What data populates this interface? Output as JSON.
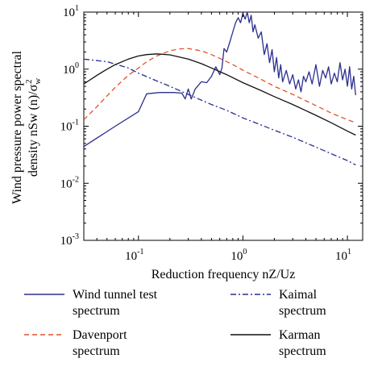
{
  "chart_data": {
    "type": "line",
    "xscale": "log",
    "yscale": "log",
    "xlim": [
      0.03,
      14
    ],
    "ylim": [
      0.001,
      10
    ],
    "xticks": [
      {
        "value": 0.1,
        "base": "10",
        "exp": "-1"
      },
      {
        "value": 1,
        "base": "10",
        "exp": "0"
      },
      {
        "value": 10,
        "base": "10",
        "exp": "1"
      }
    ],
    "yticks": [
      {
        "value": 0.001,
        "base": "10",
        "exp": "-3"
      },
      {
        "value": 0.01,
        "base": "10",
        "exp": "-2"
      },
      {
        "value": 0.1,
        "base": "10",
        "exp": "-1"
      },
      {
        "value": 1,
        "base": "10",
        "exp": "0"
      },
      {
        "value": 10,
        "base": "10",
        "exp": "1"
      }
    ],
    "xlabel": "Reduction frequency nZ/Uz",
    "ylabel_line1": "Wind pressure power spectral",
    "ylabel_line2": "density nSw (n)/σ",
    "ylabel_sub": "w",
    "ylabel_sup": "2",
    "grid": false,
    "legend_position": "bottom",
    "series": [
      {
        "name_line1": "Wind tunnel test",
        "name_line2": "spectrum",
        "color": "#2b2f8f",
        "style": "solid",
        "legend_col": 0,
        "legend_row": 0,
        "x": [
          0.03,
          0.06,
          0.1,
          0.12,
          0.16,
          0.22,
          0.26,
          0.28,
          0.3,
          0.32,
          0.35,
          0.4,
          0.45,
          0.5,
          0.55,
          0.6,
          0.63,
          0.66,
          0.7,
          0.75,
          0.8,
          0.85,
          0.9,
          0.95,
          1.0,
          1.05,
          1.1,
          1.15,
          1.2,
          1.25,
          1.3,
          1.4,
          1.5,
          1.6,
          1.7,
          1.8,
          1.9,
          2.0,
          2.1,
          2.2,
          2.3,
          2.4,
          2.6,
          2.8,
          3.0,
          3.2,
          3.4,
          3.6,
          3.8,
          4.0,
          4.3,
          4.6,
          5.0,
          5.4,
          5.8,
          6.2,
          6.6,
          7.0,
          7.5,
          8.0,
          8.5,
          9.0,
          9.5,
          10.0,
          10.5,
          11.0,
          11.5,
          12.0
        ],
        "y": [
          0.044,
          0.1,
          0.18,
          0.37,
          0.39,
          0.39,
          0.38,
          0.3,
          0.45,
          0.3,
          0.45,
          0.6,
          0.58,
          0.75,
          1.1,
          0.8,
          1.05,
          2.3,
          2.0,
          3.0,
          4.5,
          6.5,
          8.0,
          6.5,
          9.5,
          7.5,
          10.0,
          6.5,
          8.8,
          4.5,
          6.0,
          3.5,
          4.5,
          1.8,
          2.8,
          1.3,
          2.2,
          0.9,
          1.6,
          0.7,
          1.2,
          0.6,
          0.95,
          0.55,
          0.8,
          0.45,
          0.65,
          0.4,
          0.75,
          0.6,
          0.9,
          0.55,
          1.2,
          0.5,
          0.95,
          0.7,
          1.1,
          0.55,
          0.85,
          0.6,
          1.3,
          0.65,
          1.0,
          0.5,
          1.1,
          0.45,
          0.75,
          0.35
        ]
      },
      {
        "name_line1": "Kaimal",
        "name_line2": "spectrum",
        "color": "#2b2f8f",
        "style": "dashdot",
        "legend_col": 1,
        "legend_row": 0,
        "x": [
          0.03,
          0.05,
          0.08,
          0.1,
          0.15,
          0.2,
          0.3,
          0.5,
          0.7,
          1.0,
          1.5,
          2.0,
          3.0,
          5.0,
          7.0,
          10.0,
          12.0
        ],
        "y": [
          1.5,
          1.35,
          1.05,
          0.85,
          0.62,
          0.5,
          0.36,
          0.24,
          0.19,
          0.14,
          0.105,
          0.085,
          0.064,
          0.043,
          0.033,
          0.025,
          0.021
        ]
      },
      {
        "name_line1": "Davenport",
        "name_line2": "spectrum",
        "color": "#e0522b",
        "style": "dashed",
        "legend_col": 0,
        "legend_row": 1,
        "x": [
          0.03,
          0.04,
          0.05,
          0.06,
          0.08,
          0.1,
          0.12,
          0.15,
          0.2,
          0.25,
          0.3,
          0.4,
          0.5,
          0.6,
          0.8,
          1.0,
          1.5,
          2.0,
          3.0,
          5.0,
          7.0,
          10.0,
          12.0
        ],
        "y": [
          0.13,
          0.22,
          0.34,
          0.48,
          0.78,
          1.05,
          1.35,
          1.7,
          2.1,
          2.27,
          2.3,
          2.1,
          1.8,
          1.55,
          1.2,
          0.96,
          0.66,
          0.5,
          0.36,
          0.23,
          0.17,
          0.13,
          0.115
        ]
      },
      {
        "name_line1": "Karman",
        "name_line2": "spectrum",
        "color": "#111111",
        "style": "solid",
        "legend_col": 1,
        "legend_row": 1,
        "x": [
          0.03,
          0.04,
          0.05,
          0.06,
          0.08,
          0.1,
          0.12,
          0.15,
          0.2,
          0.3,
          0.4,
          0.5,
          0.7,
          1.0,
          1.5,
          2.0,
          3.0,
          5.0,
          7.0,
          10.0,
          12.0
        ],
        "y": [
          0.55,
          0.78,
          1.0,
          1.2,
          1.5,
          1.7,
          1.8,
          1.85,
          1.78,
          1.5,
          1.25,
          1.05,
          0.8,
          0.58,
          0.42,
          0.33,
          0.24,
          0.155,
          0.115,
          0.082,
          0.07
        ]
      }
    ]
  }
}
